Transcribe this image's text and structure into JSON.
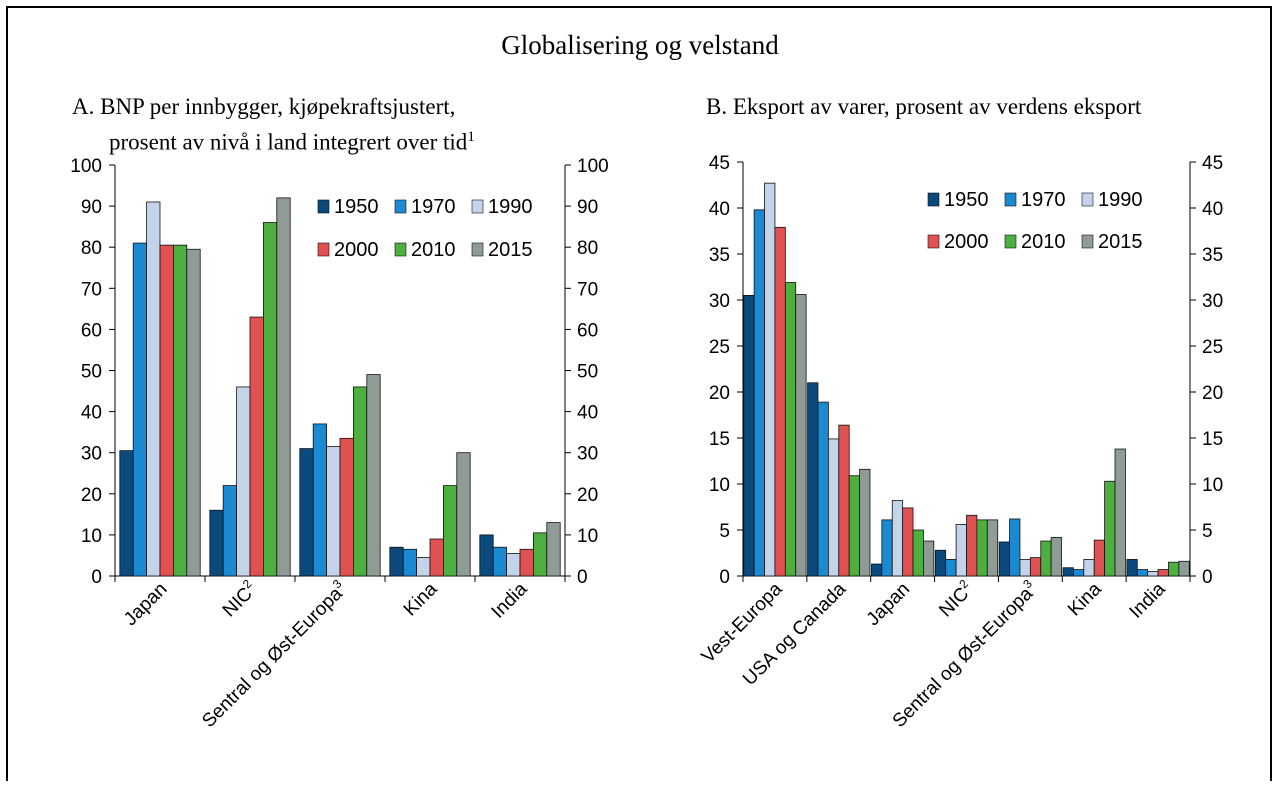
{
  "title": "Globalisering og velstand",
  "panels": {
    "a": {
      "title_line1": "A.  BNP per innbygger, kjøpekraftsjustert,",
      "title_line2": "prosent av nivå i land integrert over tid",
      "title_sup": "1"
    },
    "b": {
      "title_line1": "B. Eksport av varer, prosent av verdens eksport"
    }
  },
  "colors": {
    "1950": "#0b4a7d",
    "1970": "#1a8bd3",
    "1990": "#c3d4ea",
    "2000": "#e05252",
    "2010": "#4caf3f",
    "2015": "#8f9c95"
  },
  "chart_data": [
    {
      "type": "bar",
      "categories": [
        "Japan",
        "NIC",
        "Sentral og Øst-Europa",
        "Kina",
        "India"
      ],
      "category_sup": [
        "",
        "2",
        "3",
        "",
        ""
      ],
      "series": [
        {
          "name": "1950",
          "values": [
            30.5,
            16,
            31,
            7,
            10
          ]
        },
        {
          "name": "1970",
          "values": [
            81,
            22,
            37,
            6.5,
            7
          ]
        },
        {
          "name": "1990",
          "values": [
            91,
            46,
            31.5,
            4.5,
            5.5
          ]
        },
        {
          "name": "2000",
          "values": [
            80.5,
            63,
            33.5,
            9,
            6.5
          ]
        },
        {
          "name": "2010",
          "values": [
            80.5,
            86,
            46,
            22,
            10.5
          ]
        },
        {
          "name": "2015",
          "values": [
            79.5,
            92,
            49,
            30,
            13
          ]
        }
      ],
      "ylim": [
        0,
        100
      ],
      "yticks": [
        0,
        10,
        20,
        30,
        40,
        50,
        60,
        70,
        80,
        90,
        100
      ],
      "legend": "top-right"
    },
    {
      "type": "bar",
      "categories": [
        "Vest-Europa",
        "USA og Canada",
        "Japan",
        "NIC",
        "Sentral og Øst-Europa",
        "Kina",
        "India"
      ],
      "category_sup": [
        "",
        "",
        "",
        "2",
        "3",
        "",
        ""
      ],
      "series": [
        {
          "name": "1950",
          "values": [
            30.5,
            21,
            1.3,
            2.8,
            3.7,
            0.9,
            1.8
          ]
        },
        {
          "name": "1970",
          "values": [
            39.8,
            18.9,
            6.1,
            1.8,
            6.2,
            0.7,
            0.7
          ]
        },
        {
          "name": "1990",
          "values": [
            42.7,
            14.9,
            8.2,
            5.6,
            1.8,
            1.8,
            0.5
          ]
        },
        {
          "name": "2000",
          "values": [
            37.9,
            16.4,
            7.4,
            6.6,
            2.0,
            3.9,
            0.7
          ]
        },
        {
          "name": "2010",
          "values": [
            31.9,
            10.9,
            5.0,
            6.1,
            3.8,
            10.3,
            1.5
          ]
        },
        {
          "name": "2015",
          "values": [
            30.6,
            11.6,
            3.8,
            6.1,
            4.2,
            13.8,
            1.6
          ]
        }
      ],
      "ylim": [
        0,
        45
      ],
      "yticks": [
        0,
        5,
        10,
        15,
        20,
        25,
        30,
        35,
        40,
        45
      ],
      "legend": "top-right"
    }
  ]
}
